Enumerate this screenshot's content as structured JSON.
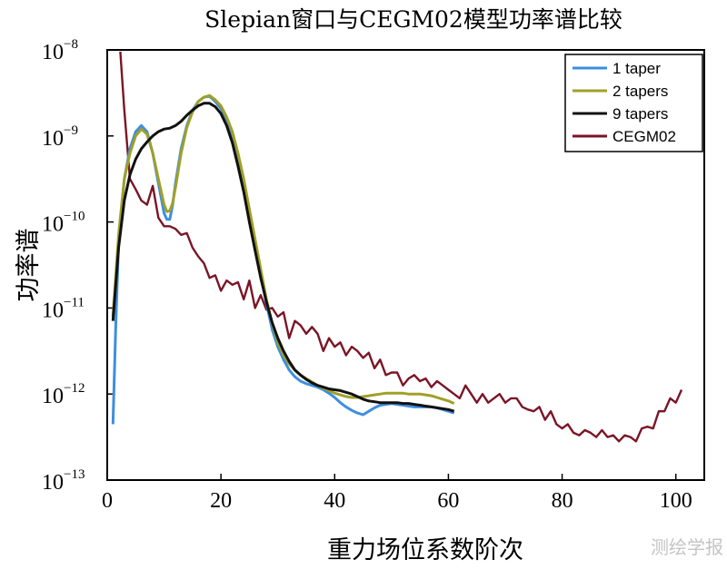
{
  "chart_data": {
    "type": "line",
    "title": "Slepian窗口与CEGM02模型功率谱比较",
    "xlabel": "重力场位系数阶次",
    "ylabel": "功率谱",
    "xlim": [
      0,
      105
    ],
    "ylim_log10": [
      -13,
      -8
    ],
    "y_scale": "log",
    "x_ticks": [
      0,
      20,
      40,
      60,
      80,
      100
    ],
    "x_tick_labels": [
      "0",
      "20",
      "40",
      "60",
      "80",
      "100"
    ],
    "y_ticks": [
      {
        "base": "10",
        "exp": "−8"
      },
      {
        "base": "10",
        "exp": "−9"
      },
      {
        "base": "10",
        "exp": "−10"
      },
      {
        "base": "10",
        "exp": "−11"
      },
      {
        "base": "10",
        "exp": "−12"
      },
      {
        "base": "10",
        "exp": "−13"
      }
    ],
    "legend_position": "top-right",
    "series": [
      {
        "name": "1 taper",
        "color": "#3d8ee0",
        "x": [
          1,
          1.5,
          2,
          3,
          4,
          5,
          6,
          7,
          8,
          9,
          10,
          10.5,
          11,
          11.5,
          12,
          13,
          14,
          15,
          16,
          17,
          18,
          19,
          20,
          21,
          22,
          23,
          24,
          25,
          26,
          27,
          28,
          29,
          30,
          31,
          32,
          33,
          34,
          35,
          36,
          37,
          38,
          39,
          40,
          41,
          42,
          43,
          44,
          45,
          46,
          47,
          48,
          49,
          50,
          51,
          52,
          53,
          54,
          55,
          56,
          57,
          58,
          59,
          60,
          61
        ],
        "log10_y": [
          -12.35,
          -11.2,
          -10.25,
          -9.5,
          -9.15,
          -8.95,
          -8.88,
          -8.95,
          -9.2,
          -9.55,
          -9.9,
          -9.97,
          -9.97,
          -9.8,
          -9.55,
          -9.15,
          -8.88,
          -8.7,
          -8.6,
          -8.55,
          -8.54,
          -8.6,
          -8.68,
          -8.82,
          -9.0,
          -9.25,
          -9.55,
          -9.9,
          -10.25,
          -10.6,
          -10.95,
          -11.25,
          -11.45,
          -11.6,
          -11.72,
          -11.8,
          -11.85,
          -11.88,
          -11.9,
          -11.92,
          -11.95,
          -11.99,
          -12.04,
          -12.1,
          -12.15,
          -12.19,
          -12.22,
          -12.24,
          -12.2,
          -12.16,
          -12.13,
          -12.12,
          -12.11,
          -12.12,
          -12.13,
          -12.14,
          -12.15,
          -12.15,
          -12.15,
          -12.15,
          -12.16,
          -12.18,
          -12.2,
          -12.22
        ]
      },
      {
        "name": "2 tapers",
        "color": "#a0a028",
        "x": [
          1,
          2,
          3,
          4,
          5,
          6,
          7,
          8,
          9,
          10,
          10.5,
          11,
          11.5,
          12,
          13,
          14,
          15,
          16,
          17,
          18,
          19,
          20,
          21,
          22,
          23,
          24,
          25,
          26,
          27,
          28,
          29,
          30,
          31,
          32,
          33,
          34,
          35,
          36,
          37,
          38,
          39,
          40,
          41,
          42,
          43,
          44,
          45,
          46,
          47,
          48,
          49,
          50,
          51,
          52,
          53,
          54,
          55,
          56,
          57,
          58,
          59,
          60,
          61
        ],
        "log10_y": [
          -11.1,
          -10.15,
          -9.5,
          -9.2,
          -9.0,
          -8.92,
          -8.98,
          -9.2,
          -9.5,
          -9.8,
          -9.88,
          -9.87,
          -9.78,
          -9.6,
          -9.2,
          -8.9,
          -8.72,
          -8.6,
          -8.55,
          -8.53,
          -8.58,
          -8.65,
          -8.78,
          -8.95,
          -9.2,
          -9.5,
          -9.85,
          -10.2,
          -10.55,
          -10.9,
          -11.18,
          -11.4,
          -11.55,
          -11.65,
          -11.72,
          -11.78,
          -11.82,
          -11.86,
          -11.9,
          -11.93,
          -11.96,
          -11.99,
          -12.01,
          -12.03,
          -12.04,
          -12.04,
          -12.03,
          -12.02,
          -12.01,
          -12.0,
          -11.99,
          -11.99,
          -11.99,
          -11.99,
          -12.0,
          -12.0,
          -12.0,
          -12.01,
          -12.02,
          -12.04,
          -12.06,
          -12.08,
          -12.11
        ]
      },
      {
        "name": "9 tapers",
        "color": "#111111",
        "x": [
          1,
          2,
          3,
          4,
          5,
          6,
          7,
          8,
          9,
          10,
          11,
          12,
          13,
          14,
          15,
          16,
          17,
          18,
          19,
          20,
          21,
          22,
          23,
          24,
          25,
          26,
          27,
          28,
          29,
          30,
          31,
          32,
          33,
          34,
          35,
          36,
          37,
          38,
          39,
          40,
          41,
          42,
          43,
          44,
          45,
          46,
          47,
          48,
          49,
          50,
          51,
          52,
          53,
          54,
          55,
          56,
          57,
          58,
          59,
          60,
          61
        ],
        "log10_y": [
          -11.15,
          -10.3,
          -9.75,
          -9.45,
          -9.27,
          -9.15,
          -9.07,
          -9.0,
          -8.95,
          -8.92,
          -8.91,
          -8.88,
          -8.83,
          -8.76,
          -8.7,
          -8.65,
          -8.62,
          -8.62,
          -8.66,
          -8.74,
          -8.88,
          -9.08,
          -9.35,
          -9.65,
          -10.0,
          -10.33,
          -10.65,
          -10.93,
          -11.17,
          -11.35,
          -11.5,
          -11.62,
          -11.72,
          -11.78,
          -11.83,
          -11.87,
          -11.9,
          -11.92,
          -11.94,
          -11.95,
          -11.96,
          -11.98,
          -12.0,
          -12.03,
          -12.06,
          -12.08,
          -12.09,
          -12.1,
          -12.1,
          -12.1,
          -12.1,
          -12.11,
          -12.11,
          -12.12,
          -12.13,
          -12.14,
          -12.15,
          -12.16,
          -12.17,
          -12.18,
          -12.2
        ]
      },
      {
        "name": "CEGM02",
        "color": "#7a1526",
        "x": [
          2.3,
          3,
          4,
          5,
          6,
          7,
          8,
          9,
          10,
          11,
          12,
          13,
          14,
          15,
          16,
          17,
          18,
          19,
          20,
          21,
          22,
          23,
          24,
          25,
          26,
          27,
          28,
          29,
          30,
          31,
          32,
          33,
          34,
          35,
          36,
          37,
          38,
          39,
          40,
          41,
          42,
          43,
          44,
          45,
          46,
          47,
          48,
          49,
          50,
          51,
          52,
          53,
          54,
          55,
          56,
          57,
          58,
          59,
          60,
          61,
          62,
          63,
          64,
          65,
          66,
          67,
          68,
          69,
          70,
          71,
          72,
          73,
          74,
          75,
          76,
          77,
          78,
          79,
          80,
          81,
          82,
          83,
          84,
          85,
          86,
          87,
          88,
          89,
          90,
          91,
          92,
          93,
          94,
          95,
          96,
          97,
          98,
          99,
          100,
          101
        ],
        "log10_y": [
          -8.02,
          -8.7,
          -9.5,
          -9.62,
          -9.75,
          -9.8,
          -9.58,
          -9.95,
          -10.05,
          -10.05,
          -10.08,
          -10.15,
          -10.13,
          -10.3,
          -10.4,
          -10.48,
          -10.65,
          -10.62,
          -10.8,
          -10.68,
          -10.73,
          -10.7,
          -10.9,
          -10.68,
          -11.0,
          -10.85,
          -11.02,
          -11.0,
          -11.1,
          -11.05,
          -11.35,
          -11.15,
          -11.2,
          -11.3,
          -11.22,
          -11.3,
          -11.5,
          -11.35,
          -11.45,
          -11.4,
          -11.55,
          -11.45,
          -11.5,
          -11.58,
          -11.52,
          -11.7,
          -11.6,
          -11.78,
          -11.75,
          -11.75,
          -11.9,
          -11.82,
          -11.78,
          -11.85,
          -11.82,
          -11.92,
          -11.85,
          -11.9,
          -11.95,
          -12.0,
          -12.05,
          -11.9,
          -12.0,
          -12.1,
          -12.0,
          -12.1,
          -12.05,
          -12.0,
          -12.1,
          -12.05,
          -12.05,
          -12.15,
          -12.18,
          -12.2,
          -12.15,
          -12.3,
          -12.2,
          -12.35,
          -12.4,
          -12.35,
          -12.45,
          -12.48,
          -12.42,
          -12.45,
          -12.5,
          -12.42,
          -12.5,
          -12.48,
          -12.55,
          -12.48,
          -12.5,
          -12.55,
          -12.4,
          -12.38,
          -12.4,
          -12.2,
          -12.2,
          -12.05,
          -12.1,
          -11.95
        ]
      }
    ]
  },
  "watermark": "测绘学报"
}
